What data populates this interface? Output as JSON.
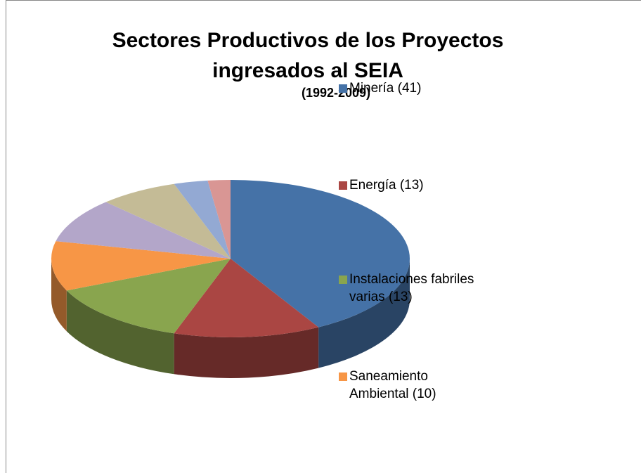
{
  "chart_data": {
    "type": "pie3d",
    "title": "Sectores Productivos de los Proyectos ingresados al SEIA",
    "subtitle": "(1992-2009)",
    "categories": [
      "Minería (41)",
      "Energía (13)",
      "Instalaciones fabriles varias (13)",
      "Saneamiento Ambiental (10)",
      null,
      null,
      null,
      null
    ],
    "values": [
      41,
      13,
      13,
      10,
      9,
      7,
      3,
      2
    ],
    "colors": [
      "#4572a7",
      "#aa4643",
      "#89a54e",
      "#f79646",
      "#b3a6c9",
      "#c4bb96",
      "#93a9d3",
      "#d99694"
    ],
    "legend": "right"
  }
}
